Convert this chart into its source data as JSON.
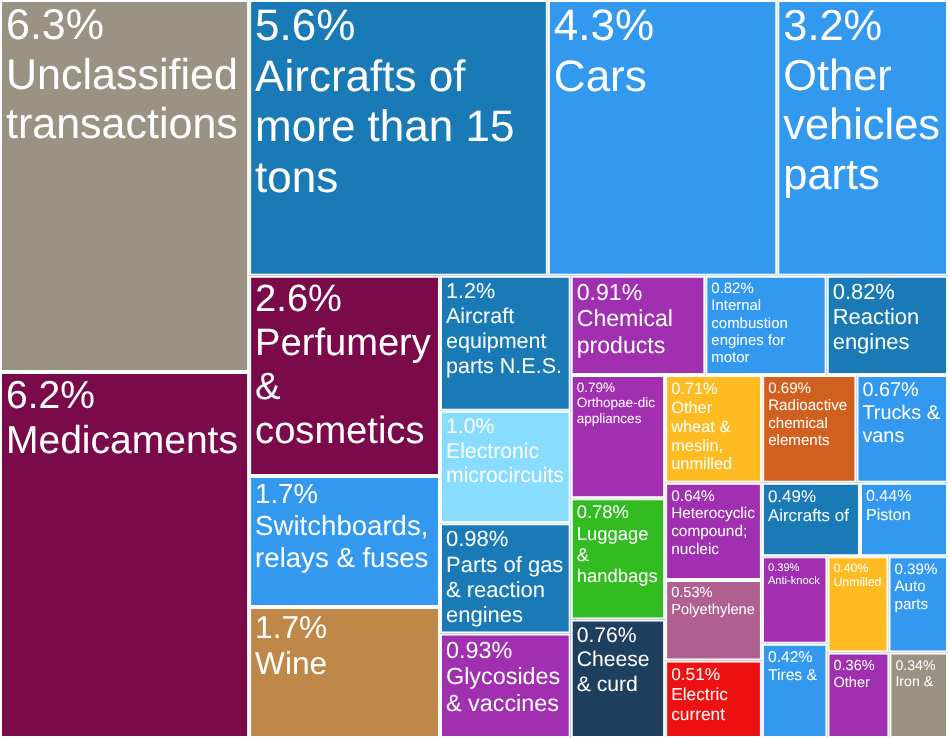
{
  "chart_data": {
    "type": "other",
    "categories": [
      "Unclassified transactions",
      "Medicaments",
      "Aircrafts of more than 15 tons",
      "Cars",
      "Other vehicles parts",
      "Perfumery & cosmetics",
      "Switchboards, relays & fuses",
      "Wine",
      "Aircraft equipment parts N.E.S.",
      "Electronic microcircuits",
      "Parts of gas & reaction engines",
      "Glycosides & vaccines",
      "Chemical products",
      "Internal combustion engines for motor",
      "Reaction engines",
      "Orthopae-dic appliances",
      "Luggage & handbags",
      "Cheese & curd",
      "Other wheat & meslin, unmilled",
      "Radioactive chemical elements",
      "Trucks & vans",
      "Heterocyclic compound; nucleic",
      "Polyethylene",
      "Electric current",
      "Aircrafts of",
      "Piston",
      "Anti-knock",
      "Tires &",
      "Unmilled",
      "Auto parts",
      "Other",
      "Iron &"
    ],
    "values": [
      6.3,
      6.2,
      5.6,
      4.3,
      3.2,
      2.6,
      1.7,
      1.7,
      1.2,
      1.0,
      0.98,
      0.93,
      0.91,
      0.82,
      0.82,
      0.79,
      0.78,
      0.76,
      0.71,
      0.69,
      0.67,
      0.64,
      0.53,
      0.51,
      0.49,
      0.44,
      0.39,
      0.42,
      0.4,
      0.39,
      0.36,
      0.34
    ],
    "value_labels": [
      "6.3%",
      "6.2%",
      "5.6%",
      "4.3%",
      "3.2%",
      "2.6%",
      "1.7%",
      "1.7%",
      "1.2%",
      "1.0%",
      "0.98%",
      "0.93%",
      "0.91%",
      "0.82%",
      "0.82%",
      "0.79%",
      "0.78%",
      "0.76%",
      "0.71%",
      "0.69%",
      "0.67%",
      "0.64%",
      "0.53%",
      "0.51%",
      "0.49%",
      "0.44%",
      "0.39%",
      "0.42%",
      "0.40%",
      "0.39%",
      "0.36%",
      "0.34%"
    ],
    "colors": [
      "#9a9282",
      "#7a0a4a",
      "#1a7ab5",
      "#3399ee",
      "#3399ee",
      "#7a0a4a",
      "#3399ee",
      "#c08848",
      "#1a7ab5",
      "#88ddff",
      "#1a7ab5",
      "#a030b0",
      "#a030b0",
      "#3399ee",
      "#1a7ab5",
      "#a030b0",
      "#33bb22",
      "#1f3f5f",
      "#ffbb22",
      "#d06020",
      "#3399ee",
      "#a030b0",
      "#b06090",
      "#ee1111",
      "#1a7ab5",
      "#3399ee",
      "#a030b0",
      "#3399ee",
      "#ffbb22",
      "#3399ee",
      "#a030b0",
      "#9a9282"
    ]
  }
}
